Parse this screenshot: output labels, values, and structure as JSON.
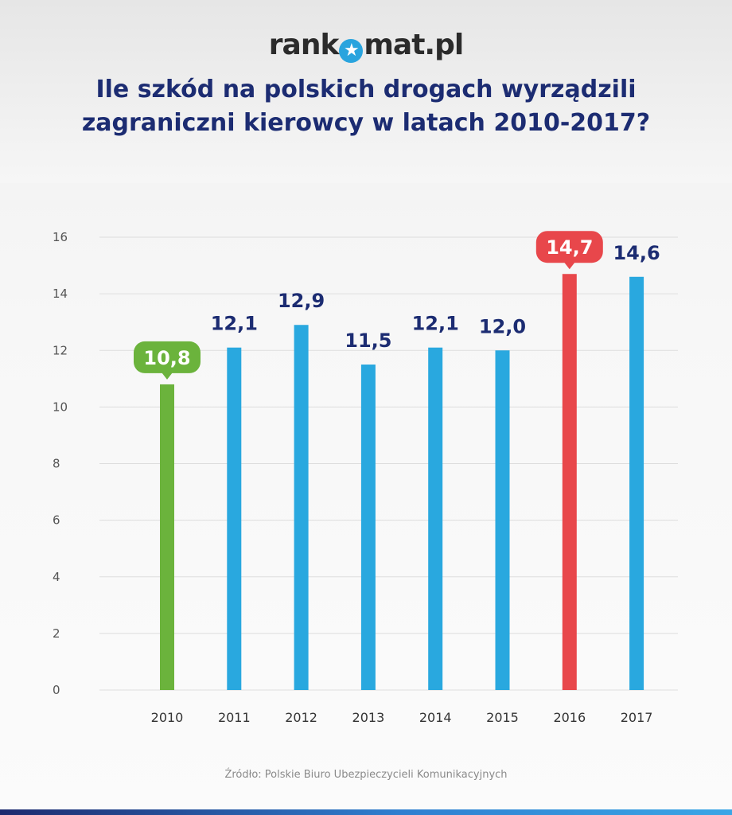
{
  "header": {
    "logo_left": "rank",
    "logo_star": "★",
    "logo_right": "mat.pl",
    "title_line1": "Ile szkód na polskich drogach wyrządzili",
    "title_line2": "zagraniczni kierowcy w latach 2010-2017?"
  },
  "footer": {
    "source": "Źródło: Polskie Biuro Ubezpieczycieli Komunikacyjnych"
  },
  "colors": {
    "default_bar": "#29a8df",
    "min_bar": "#6bb33c",
    "max_bar": "#e8474b",
    "value_text": "#1c2c72",
    "grid": "#dddddd",
    "axis_text": "#555555"
  },
  "chart_data": {
    "type": "bar",
    "categories": [
      "2010",
      "2011",
      "2012",
      "2013",
      "2014",
      "2015",
      "2016",
      "2017"
    ],
    "values": [
      10.8,
      12.1,
      12.9,
      11.5,
      12.1,
      12.0,
      14.7,
      14.6
    ],
    "value_labels": [
      "10,8",
      "12,1",
      "12,9",
      "11,5",
      "12,1",
      "12,0",
      "14,7",
      "14,6"
    ],
    "highlight_min_index": 0,
    "highlight_max_index": 6,
    "ylim": [
      0,
      16
    ],
    "yticks": [
      0,
      2,
      4,
      6,
      8,
      10,
      12,
      14,
      16
    ],
    "grid": true,
    "title": "Ile szkód na polskich drogach wyrządzili zagraniczni kierowcy w latach 2010-2017?",
    "xlabel": "",
    "ylabel": ""
  }
}
